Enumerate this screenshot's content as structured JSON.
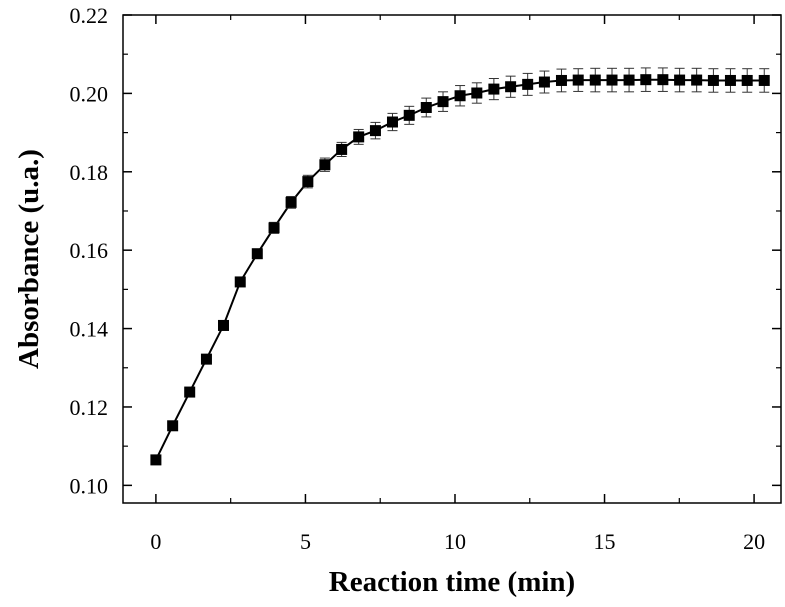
{
  "chart_data": {
    "type": "scatter",
    "title": "",
    "xlabel": "Reaction time (min)",
    "ylabel": "Absorbance (u.a.)",
    "xlim": [
      -1.1,
      20.9
    ],
    "ylim": [
      0.0955,
      0.22
    ],
    "x_ticks": [
      "0",
      "5",
      "10",
      "15",
      "20"
    ],
    "y_ticks": [
      "0.10",
      "0.12",
      "0.14",
      "0.16",
      "0.18",
      "0.20",
      "0.22"
    ],
    "grid": false,
    "legend": "none",
    "marker": "filled-square",
    "line_connected": true,
    "color": "#000000",
    "series": [
      {
        "x": [
          0,
          0.56,
          1.13,
          1.69,
          2.26,
          2.82,
          3.39,
          3.95,
          4.52,
          5.08,
          5.65,
          6.21,
          6.78,
          7.34,
          7.91,
          8.47,
          9.04,
          9.6,
          10.17,
          10.73,
          11.3,
          11.86,
          12.43,
          12.99,
          13.56,
          14.12,
          14.69,
          15.25,
          15.82,
          16.38,
          16.95,
          17.51,
          18.08,
          18.64,
          19.21,
          19.77,
          20.34
        ],
        "y": [
          0.1065,
          0.1152,
          0.1238,
          0.1322,
          0.1408,
          0.1519,
          0.1591,
          0.1657,
          0.1722,
          0.1775,
          0.1818,
          0.1857,
          0.1889,
          0.1905,
          0.1927,
          0.1944,
          0.1964,
          0.1979,
          0.1994,
          0.2001,
          0.2011,
          0.2017,
          0.2023,
          0.2029,
          0.2033,
          0.2034,
          0.2034,
          0.2034,
          0.2034,
          0.2035,
          0.2035,
          0.2034,
          0.2034,
          0.2033,
          0.2033,
          0.2033,
          0.2033
        ],
        "error": [
          0.0012,
          0.0012,
          0.0012,
          0.0012,
          0.0012,
          0.0012,
          0.0012,
          0.0014,
          0.0015,
          0.0016,
          0.0017,
          0.0018,
          0.0019,
          0.0021,
          0.0022,
          0.0023,
          0.0024,
          0.0025,
          0.0026,
          0.0026,
          0.0027,
          0.0027,
          0.0028,
          0.0028,
          0.0029,
          0.0029,
          0.003,
          0.003,
          0.003,
          0.003,
          0.003,
          0.003,
          0.003,
          0.003,
          0.003,
          0.003,
          0.003
        ]
      }
    ]
  }
}
